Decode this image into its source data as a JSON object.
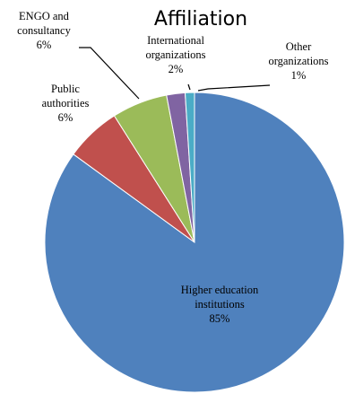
{
  "chart_data": {
    "type": "pie",
    "title": "Affiliation",
    "legend": "none",
    "slices": [
      {
        "label_lines": [
          "Higher education",
          "institutions"
        ],
        "value": 85,
        "display": "85%",
        "color": "#4f81bd",
        "callout": false
      },
      {
        "label_lines": [
          "Public",
          "authorities"
        ],
        "value": 6,
        "display": "6%",
        "color": "#c0504d",
        "callout": false
      },
      {
        "label_lines": [
          "ENGO and",
          "consultancy"
        ],
        "value": 6,
        "display": "6%",
        "color": "#9bbb59",
        "callout": true
      },
      {
        "label_lines": [
          "International",
          "organizations"
        ],
        "value": 2,
        "display": "2%",
        "color": "#8064a2",
        "callout": true
      },
      {
        "label_lines": [
          "Other",
          "organizations"
        ],
        "value": 1,
        "display": "1%",
        "color": "#4bacc6",
        "callout": true
      }
    ]
  }
}
